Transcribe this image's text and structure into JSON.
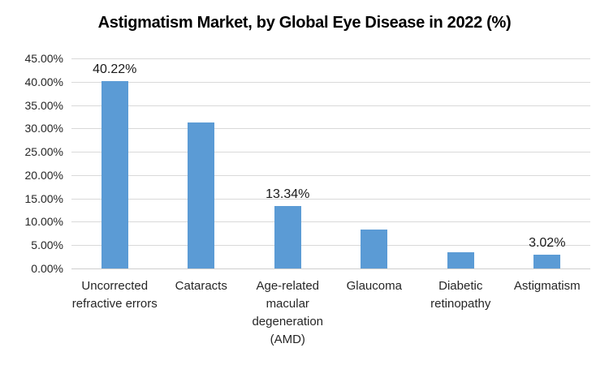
{
  "chart_data": {
    "type": "bar",
    "title": "Astigmatism Market, by Global Eye Disease in 2022 (%)",
    "categories": [
      "Uncorrected refractive errors",
      "Cataracts",
      "Age-related macular degeneration (AMD)",
      "Glaucoma",
      "Diabetic retinopathy",
      "Astigmatism"
    ],
    "values": [
      40.22,
      31.2,
      13.34,
      8.3,
      3.5,
      3.02
    ],
    "value_labels": [
      "40.22%",
      null,
      "13.34%",
      null,
      null,
      "3.02%"
    ],
    "y_tick_labels": [
      "0.00%",
      "5.00%",
      "10.00%",
      "15.00%",
      "20.00%",
      "25.00%",
      "30.00%",
      "35.00%",
      "40.00%",
      "45.00%"
    ],
    "ylim": [
      0,
      45
    ],
    "y_tick_step": 5,
    "xlabel": "",
    "ylabel": "",
    "grid": true,
    "legend_position": "none",
    "bar_color": "#5B9BD5",
    "gridline_color": "#D9D9D9",
    "axis_line_color": "#CFCFCF",
    "text_color": "#262626"
  }
}
